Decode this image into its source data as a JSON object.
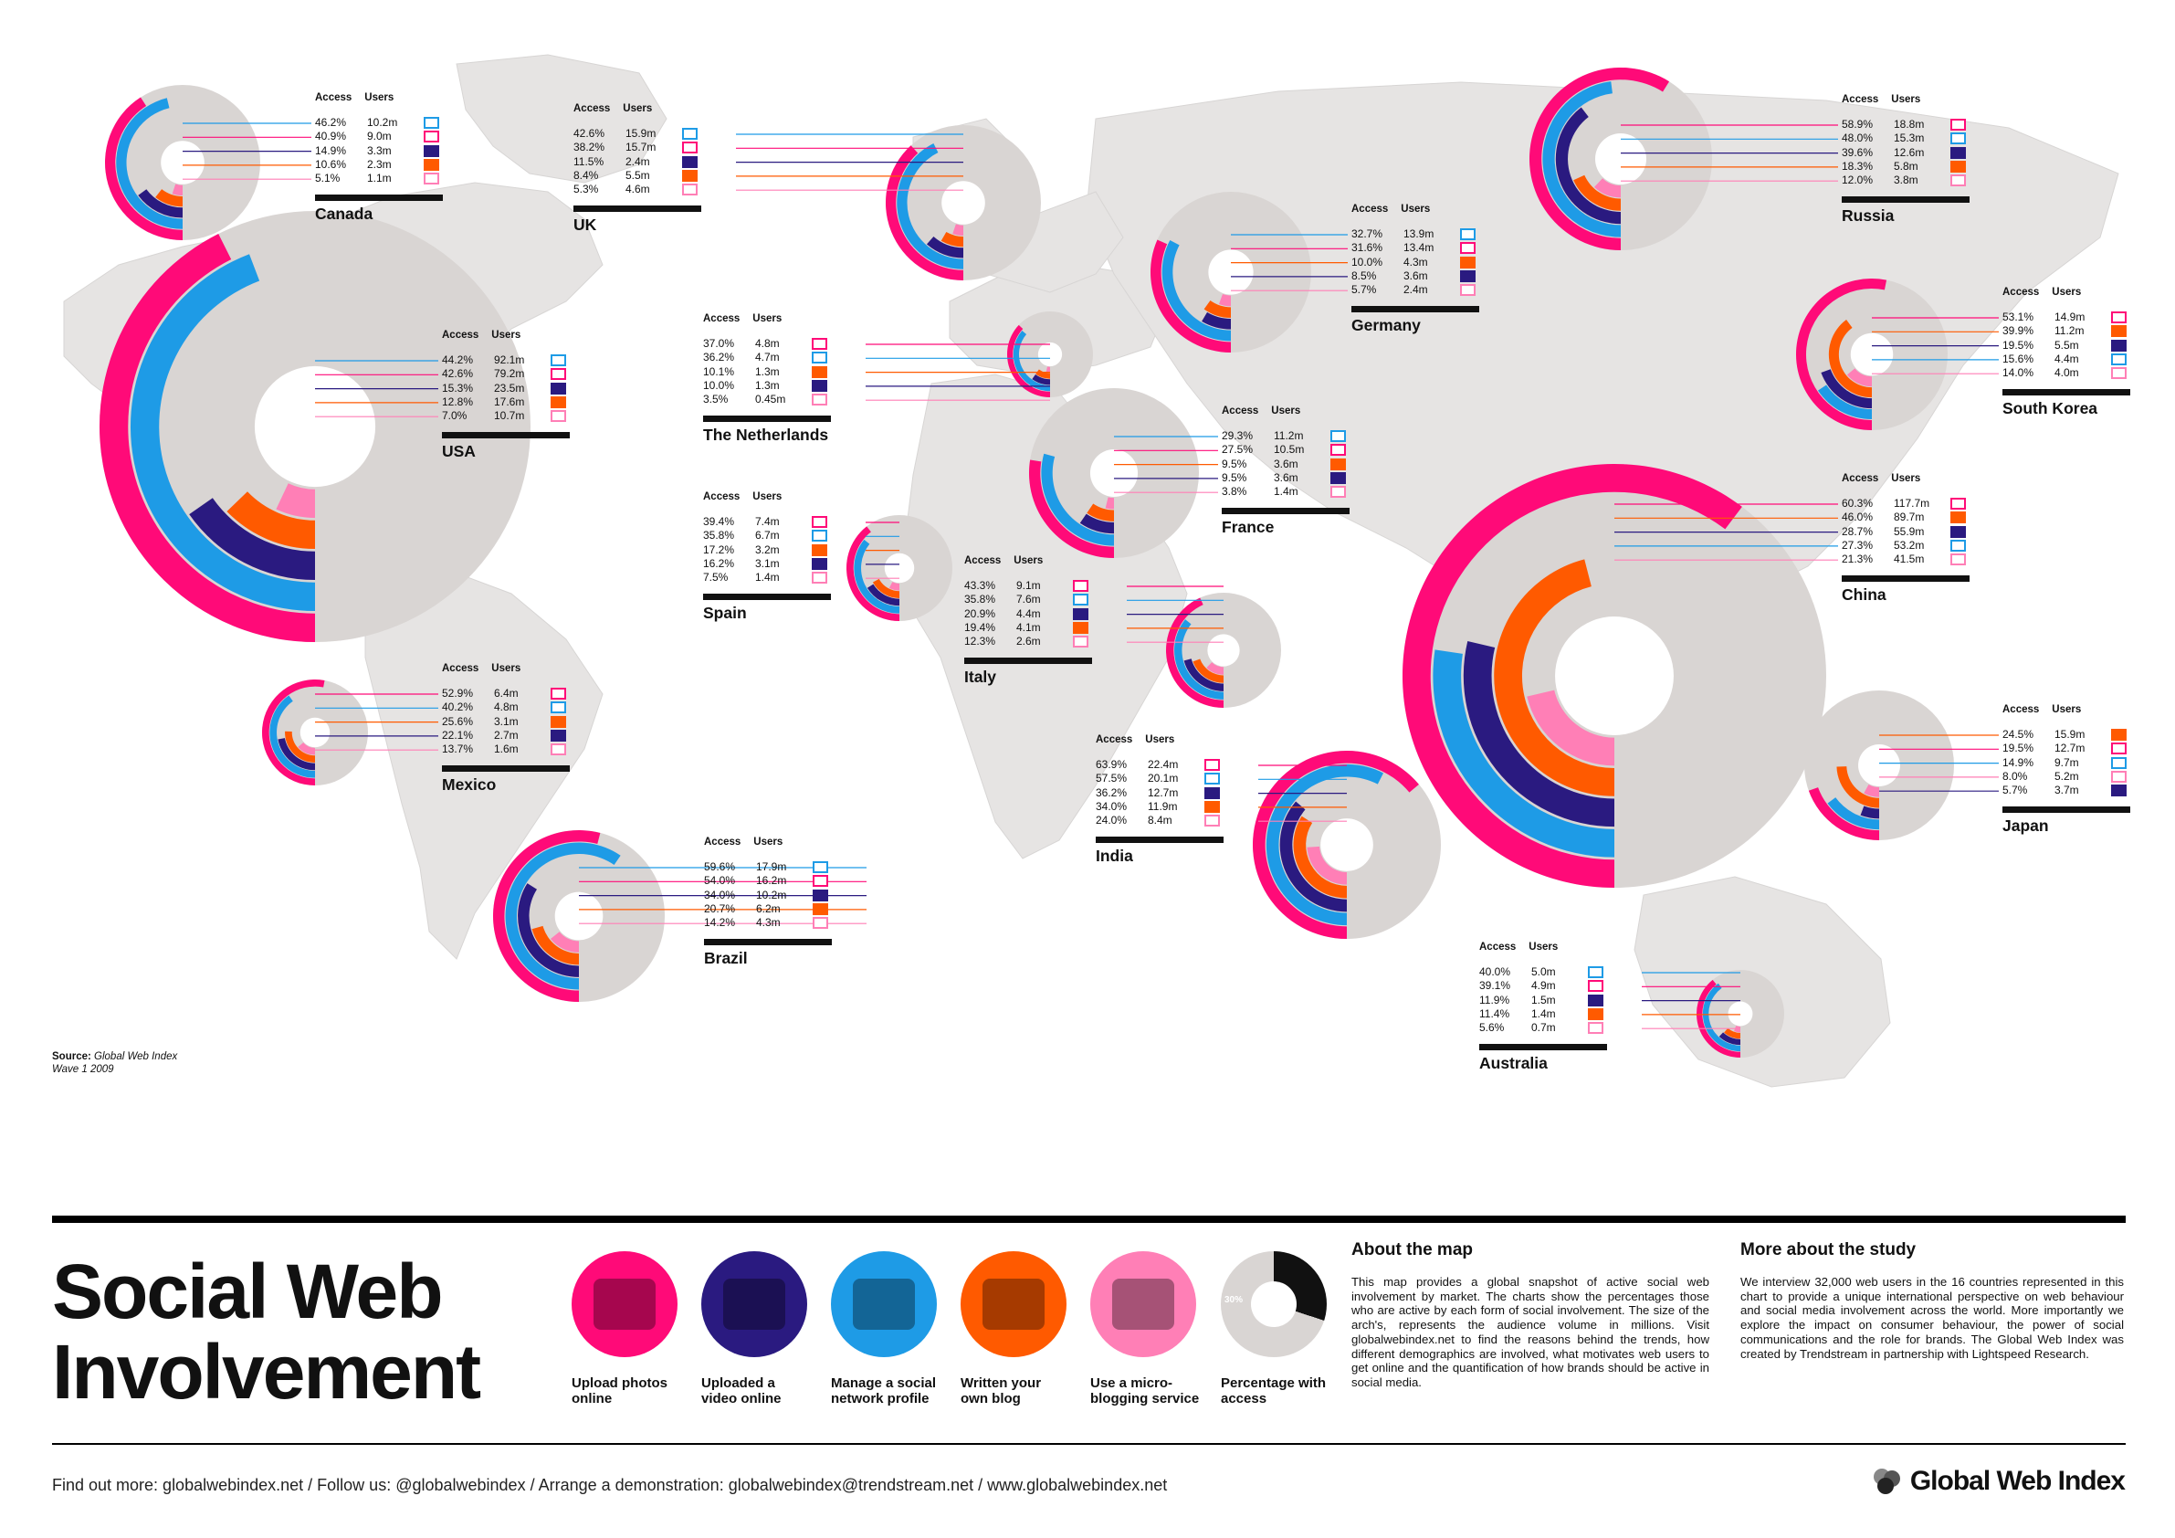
{
  "title_line1": "Social Web",
  "title_line2": "Involvement",
  "source": {
    "label": "Source:",
    "name": "Global Web Index",
    "wave": "Wave 1 2009"
  },
  "headers": {
    "access": "Access",
    "users": "Users"
  },
  "colors": {
    "photo": "#ff0a78",
    "video": "#2a1a80",
    "social": "#1e9be6",
    "blog": "#ff5a00",
    "micro": "#ff7fb6",
    "access": "#d9d5d3",
    "map": "#e6e4e3"
  },
  "categories": [
    {
      "key": "photo",
      "label": "Upload photos online",
      "icon": "camera-icon"
    },
    {
      "key": "video",
      "label": "Uploaded a video online",
      "icon": "video-icon"
    },
    {
      "key": "social",
      "label": "Manage a social network profile",
      "icon": "profile-icon"
    },
    {
      "key": "blog",
      "label": "Written your own blog",
      "icon": "keyboard-icon"
    },
    {
      "key": "micro",
      "label": "Use a micro-blogging service",
      "icon": "phone-icon"
    },
    {
      "key": "access",
      "label": "Percentage with access",
      "icon": "donut-icon",
      "sample": "30%"
    }
  ],
  "about": {
    "heading": "About the map",
    "text": "This map provides a global snapshot of active social web involvement by market. The charts show the percentages those who are active by each form of social involvement. The size of the arch's, represents the audience volume in millions. Visit globalwebindex.net to find the reasons behind the trends, how different demographics are involved, what motivates web users to get online and the quantification of how brands should be active in social media."
  },
  "study": {
    "heading": "More about the study",
    "text": "We interview 32,000 web users in the 16 countries represented in this chart to provide a unique international perspective on web behaviour and social media involvement across the world. More importantly we explore the impact on consumer behaviour, the power of social communications and the role for brands. The Global Web Index was created by Trendstream in partnership with Lightspeed Research."
  },
  "footer": "Find out more: globalwebindex.net  /  Follow us: @globalwebindex  /  Arrange a demonstration: globalwebindex@trendstream.net  /  www.globalwebindex.net",
  "brand": "Global Web Index",
  "chart_data": {
    "type": "pie",
    "title": "Social Web Involvement",
    "series_order": [
      "photo",
      "video",
      "social",
      "blog",
      "micro"
    ],
    "countries": [
      {
        "name": "Canada",
        "rows": [
          {
            "key": "social",
            "access": "46.2%",
            "users": "10.2m"
          },
          {
            "key": "photo",
            "access": "40.9%",
            "users": "9.0m"
          },
          {
            "key": "video",
            "access": "14.9%",
            "users": "3.3m"
          },
          {
            "key": "blog",
            "access": "10.6%",
            "users": "2.3m"
          },
          {
            "key": "micro",
            "access": "5.1%",
            "users": "1.1m"
          }
        ]
      },
      {
        "name": "UK",
        "rows": [
          {
            "key": "social",
            "access": "42.6%",
            "users": "15.9m"
          },
          {
            "key": "photo",
            "access": "38.2%",
            "users": "15.7m"
          },
          {
            "key": "video",
            "access": "11.5%",
            "users": "2.4m"
          },
          {
            "key": "blog",
            "access": "8.4%",
            "users": "5.5m"
          },
          {
            "key": "micro",
            "access": "5.3%",
            "users": "4.6m"
          }
        ]
      },
      {
        "name": "USA",
        "rows": [
          {
            "key": "social",
            "access": "44.2%",
            "users": "92.1m"
          },
          {
            "key": "photo",
            "access": "42.6%",
            "users": "79.2m"
          },
          {
            "key": "video",
            "access": "15.3%",
            "users": "23.5m"
          },
          {
            "key": "blog",
            "access": "12.8%",
            "users": "17.6m"
          },
          {
            "key": "micro",
            "access": "7.0%",
            "users": "10.7m"
          }
        ]
      },
      {
        "name": "The Netherlands",
        "rows": [
          {
            "key": "photo",
            "access": "37.0%",
            "users": "4.8m"
          },
          {
            "key": "social",
            "access": "36.2%",
            "users": "4.7m"
          },
          {
            "key": "blog",
            "access": "10.1%",
            "users": "1.3m"
          },
          {
            "key": "video",
            "access": "10.0%",
            "users": "1.3m"
          },
          {
            "key": "micro",
            "access": "3.5%",
            "users": "0.45m"
          }
        ]
      },
      {
        "name": "Germany",
        "rows": [
          {
            "key": "social",
            "access": "32.7%",
            "users": "13.9m"
          },
          {
            "key": "photo",
            "access": "31.6%",
            "users": "13.4m"
          },
          {
            "key": "blog",
            "access": "10.0%",
            "users": "4.3m"
          },
          {
            "key": "video",
            "access": "8.5%",
            "users": "3.6m"
          },
          {
            "key": "micro",
            "access": "5.7%",
            "users": "2.4m"
          }
        ]
      },
      {
        "name": "Russia",
        "rows": [
          {
            "key": "photo",
            "access": "58.9%",
            "users": "18.8m"
          },
          {
            "key": "social",
            "access": "48.0%",
            "users": "15.3m"
          },
          {
            "key": "video",
            "access": "39.6%",
            "users": "12.6m"
          },
          {
            "key": "blog",
            "access": "18.3%",
            "users": "5.8m"
          },
          {
            "key": "micro",
            "access": "12.0%",
            "users": "3.8m"
          }
        ]
      },
      {
        "name": "South Korea",
        "rows": [
          {
            "key": "photo",
            "access": "53.1%",
            "users": "14.9m"
          },
          {
            "key": "blog",
            "access": "39.9%",
            "users": "11.2m"
          },
          {
            "key": "video",
            "access": "19.5%",
            "users": "5.5m"
          },
          {
            "key": "social",
            "access": "15.6%",
            "users": "4.4m"
          },
          {
            "key": "micro",
            "access": "14.0%",
            "users": "4.0m"
          }
        ]
      },
      {
        "name": "France",
        "rows": [
          {
            "key": "social",
            "access": "29.3%",
            "users": "11.2m"
          },
          {
            "key": "photo",
            "access": "27.5%",
            "users": "10.5m"
          },
          {
            "key": "blog",
            "access": "9.5%",
            "users": "3.6m"
          },
          {
            "key": "video",
            "access": "9.5%",
            "users": "3.6m"
          },
          {
            "key": "micro",
            "access": "3.8%",
            "users": "1.4m"
          }
        ]
      },
      {
        "name": "Spain",
        "rows": [
          {
            "key": "photo",
            "access": "39.4%",
            "users": "7.4m"
          },
          {
            "key": "social",
            "access": "35.8%",
            "users": "6.7m"
          },
          {
            "key": "blog",
            "access": "17.2%",
            "users": "3.2m"
          },
          {
            "key": "video",
            "access": "16.2%",
            "users": "3.1m"
          },
          {
            "key": "micro",
            "access": "7.5%",
            "users": "1.4m"
          }
        ]
      },
      {
        "name": "Italy",
        "rows": [
          {
            "key": "photo",
            "access": "43.3%",
            "users": "9.1m"
          },
          {
            "key": "social",
            "access": "35.8%",
            "users": "7.6m"
          },
          {
            "key": "video",
            "access": "20.9%",
            "users": "4.4m"
          },
          {
            "key": "blog",
            "access": "19.4%",
            "users": "4.1m"
          },
          {
            "key": "micro",
            "access": "12.3%",
            "users": "2.6m"
          }
        ]
      },
      {
        "name": "China",
        "rows": [
          {
            "key": "photo",
            "access": "60.3%",
            "users": "117.7m"
          },
          {
            "key": "blog",
            "access": "46.0%",
            "users": "89.7m"
          },
          {
            "key": "video",
            "access": "28.7%",
            "users": "55.9m"
          },
          {
            "key": "social",
            "access": "27.3%",
            "users": "53.2m"
          },
          {
            "key": "micro",
            "access": "21.3%",
            "users": "41.5m"
          }
        ]
      },
      {
        "name": "Mexico",
        "rows": [
          {
            "key": "photo",
            "access": "52.9%",
            "users": "6.4m"
          },
          {
            "key": "social",
            "access": "40.2%",
            "users": "4.8m"
          },
          {
            "key": "blog",
            "access": "25.6%",
            "users": "3.1m"
          },
          {
            "key": "video",
            "access": "22.1%",
            "users": "2.7m"
          },
          {
            "key": "micro",
            "access": "13.7%",
            "users": "1.6m"
          }
        ]
      },
      {
        "name": "India",
        "rows": [
          {
            "key": "photo",
            "access": "63.9%",
            "users": "22.4m"
          },
          {
            "key": "social",
            "access": "57.5%",
            "users": "20.1m"
          },
          {
            "key": "video",
            "access": "36.2%",
            "users": "12.7m"
          },
          {
            "key": "blog",
            "access": "34.0%",
            "users": "11.9m"
          },
          {
            "key": "micro",
            "access": "24.0%",
            "users": "8.4m"
          }
        ]
      },
      {
        "name": "Japan",
        "rows": [
          {
            "key": "blog",
            "access": "24.5%",
            "users": "15.9m"
          },
          {
            "key": "photo",
            "access": "19.5%",
            "users": "12.7m"
          },
          {
            "key": "social",
            "access": "14.9%",
            "users": "9.7m"
          },
          {
            "key": "micro",
            "access": "8.0%",
            "users": "5.2m"
          },
          {
            "key": "video",
            "access": "5.7%",
            "users": "3.7m"
          }
        ]
      },
      {
        "name": "Brazil",
        "rows": [
          {
            "key": "social",
            "access": "59.6%",
            "users": "17.9m"
          },
          {
            "key": "photo",
            "access": "54.0%",
            "users": "16.2m"
          },
          {
            "key": "video",
            "access": "34.0%",
            "users": "10.2m"
          },
          {
            "key": "blog",
            "access": "20.7%",
            "users": "6.2m"
          },
          {
            "key": "micro",
            "access": "14.2%",
            "users": "4.3m"
          }
        ]
      },
      {
        "name": "Australia",
        "rows": [
          {
            "key": "social",
            "access": "40.0%",
            "users": "5.0m"
          },
          {
            "key": "photo",
            "access": "39.1%",
            "users": "4.9m"
          },
          {
            "key": "video",
            "access": "11.9%",
            "users": "1.5m"
          },
          {
            "key": "blog",
            "access": "11.4%",
            "users": "1.4m"
          },
          {
            "key": "micro",
            "access": "5.6%",
            "users": "0.7m"
          }
        ]
      }
    ]
  }
}
